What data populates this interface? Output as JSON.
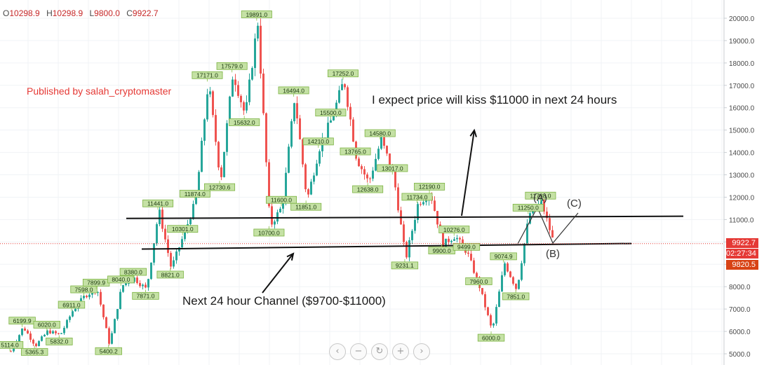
{
  "ohlc": {
    "o": "O",
    "o_val": "10298.9",
    "h": "H",
    "h_val": "10298.9",
    "l": "L",
    "l_val": "9800.0",
    "c": "C",
    "c_val": "9922.7"
  },
  "publisher": "Published by salah_cryptomaster",
  "annotations": {
    "top": "I expect price will kiss $11000 in next 24 hours",
    "bottom": "Next 24 hour Channel ($9700-$11000)",
    "wave_a": "(A)",
    "wave_b": "(B)",
    "wave_c": "(C)"
  },
  "badges": {
    "price": "9922.7",
    "timer": "02:27:34",
    "low": "9820.5"
  },
  "controls": {
    "back": "‹",
    "zoom_out": "−",
    "reset": "↻",
    "zoom_in": "+",
    "forward": "›"
  },
  "colors": {
    "up": "#26a69a",
    "down": "#ef5350",
    "label_bg": "#c5e1a5",
    "label_border": "#7cb342",
    "price_line": "#e53935"
  },
  "chart_data": {
    "type": "candlestick",
    "ylim": [
      4800,
      20300
    ],
    "y_ticks": [
      5000.0,
      6000.0,
      7000.0,
      8000.0,
      9000.0,
      10000.0,
      11000.0,
      12000.0,
      13000.0,
      14000.0,
      15000.0,
      16000.0,
      17000.0,
      18000.0,
      19000.0,
      20000.0
    ],
    "price_points": [
      [
        5114.0,
        5114.0
      ],
      [
        6199.9,
        6199.9
      ],
      [
        5365.3,
        5365.3
      ],
      [
        6020.0,
        6020.0
      ],
      [
        5832.0,
        5832.0
      ],
      [
        6911.0,
        6911.0
      ],
      [
        7598.0,
        7598.0
      ],
      [
        7899.9,
        7899.9
      ],
      [
        5400.2,
        5400.2
      ],
      [
        8040.0,
        8040.0
      ],
      [
        8380.0,
        8380.0
      ],
      [
        7871.0,
        7871.0
      ],
      [
        11441.0,
        11441.0
      ],
      [
        8821.0,
        8821.0
      ],
      [
        10301.0,
        10301.0
      ],
      [
        11874.0,
        11874.0
      ],
      [
        17171.0,
        17171.0
      ],
      [
        12730.6,
        12730.6
      ],
      [
        17579.0,
        17579.0
      ],
      [
        15632.0,
        15632.0
      ],
      [
        19891.0,
        19891.0
      ],
      [
        10700.0,
        10700.0
      ],
      [
        11600.0,
        11600.0
      ],
      [
        16494.0,
        16494.0
      ],
      [
        11851.0,
        11851.0
      ],
      [
        14210.0,
        14210.0
      ],
      [
        15500.0,
        15500.0
      ],
      [
        17252.0,
        17252.0
      ],
      [
        13765.0,
        13765.0
      ],
      [
        12638.0,
        12638.0
      ],
      [
        14580.0,
        14580.0
      ],
      [
        13017.0,
        13017.0
      ],
      [
        9231.1,
        9231.1
      ],
      [
        11734.0,
        11734.0
      ],
      [
        12190.0,
        12190.0
      ],
      [
        9900.0,
        9900.0
      ],
      [
        10276.0,
        10276.0
      ],
      [
        9499.0,
        9499.0
      ],
      [
        7960.0,
        7960.0
      ],
      [
        6000.0,
        6000.0
      ],
      [
        9074.9,
        9074.9
      ],
      [
        7851.0,
        7851.0
      ],
      [
        11250.0,
        11250.0
      ],
      [
        11788.0,
        11788.0
      ],
      [
        9922.7,
        9922.7
      ]
    ],
    "price_labels": [
      {
        "text": "5114.0",
        "price": 5114.0
      },
      {
        "text": "6199.9",
        "price": 6199.9
      },
      {
        "text": "5365.3",
        "price": 5365.3
      },
      {
        "text": "6020.0",
        "price": 6020.0
      },
      {
        "text": "5832.0",
        "price": 5832.0
      },
      {
        "text": "6911.0",
        "price": 6911.0
      },
      {
        "text": "7598.0",
        "price": 7598.0
      },
      {
        "text": "7899.9",
        "price": 7899.9
      },
      {
        "text": "5400.2",
        "price": 5400.2
      },
      {
        "text": "8040.0",
        "price": 8040.0
      },
      {
        "text": "8380.0",
        "price": 8380.0
      },
      {
        "text": "7871.0",
        "price": 7871.0
      },
      {
        "text": "11441.0",
        "price": 11441.0
      },
      {
        "text": "8821.0",
        "price": 8821.0
      },
      {
        "text": "10301.0",
        "price": 10301.0
      },
      {
        "text": "11874.0",
        "price": 11874.0
      },
      {
        "text": "17171.0",
        "price": 17171.0
      },
      {
        "text": "12730.6",
        "price": 12730.6
      },
      {
        "text": "17579.0",
        "price": 17579.0
      },
      {
        "text": "15632.0",
        "price": 15632.0
      },
      {
        "text": "19891.0",
        "price": 19891.0
      },
      {
        "text": "10700.0",
        "price": 10700.0
      },
      {
        "text": "11600.0",
        "price": 11600.0
      },
      {
        "text": "16494.0",
        "price": 16494.0
      },
      {
        "text": "11851.0",
        "price": 11851.0
      },
      {
        "text": "14210.0",
        "price": 14210.0
      },
      {
        "text": "15500.0",
        "price": 15500.0
      },
      {
        "text": "17252.0",
        "price": 17252.0
      },
      {
        "text": "13765.0",
        "price": 13765.0
      },
      {
        "text": "12638.0",
        "price": 12638.0
      },
      {
        "text": "14580.0",
        "price": 14580.0
      },
      {
        "text": "13017.0",
        "price": 13017.0
      },
      {
        "text": "9231.1",
        "price": 9231.1
      },
      {
        "text": "11734.0",
        "price": 11734.0
      },
      {
        "text": "12190.0",
        "price": 12190.0
      },
      {
        "text": "9900.0",
        "price": 9900.0
      },
      {
        "text": "10276.0",
        "price": 10276.0
      },
      {
        "text": "9499.0",
        "price": 9499.0
      },
      {
        "text": "7960.0",
        "price": 7960.0
      },
      {
        "text": "6000.0",
        "price": 6000.0
      },
      {
        "text": "9074.9",
        "price": 9074.9
      },
      {
        "text": "7851.0",
        "price": 7851.0
      },
      {
        "text": "11250.0",
        "price": 11250.0
      },
      {
        "text": "11788.0",
        "price": 11788.0
      }
    ],
    "trend_lines": [
      {
        "name": "resistance",
        "from": 11050,
        "to": 11150
      },
      {
        "name": "support",
        "from": 9680,
        "to": 9930
      }
    ],
    "last_price": 9922.7,
    "grid": true
  }
}
